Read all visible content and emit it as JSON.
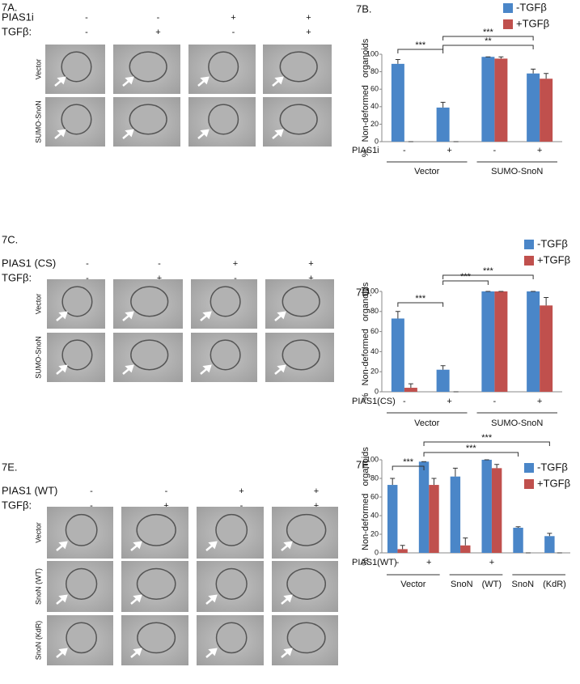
{
  "panels": [
    {
      "label": "7A.",
      "conditions": [
        {
          "name": "PIAS1i",
          "signs": [
            "-",
            "-",
            "+",
            "+"
          ]
        },
        {
          "name": "TGFβ:",
          "signs": [
            "-",
            "+",
            "-",
            "+"
          ]
        }
      ],
      "rows": [
        "Vector",
        "SUMO-SnoN"
      ]
    },
    {
      "label": "7C.",
      "conditions": [
        {
          "name": "PIAS1 (CS)",
          "signs": [
            "-",
            "-",
            "+",
            "+"
          ]
        },
        {
          "name": "TGFβ:",
          "signs": [
            "-",
            "+",
            "-",
            "+"
          ]
        }
      ],
      "rows": [
        "Vector",
        "SUMO-SnoN"
      ]
    },
    {
      "label": "7E.",
      "conditions": [
        {
          "name": "PIAS1 (WT)",
          "signs": [
            "-",
            "-",
            "+",
            "+"
          ]
        },
        {
          "name": "TGFβ:",
          "signs": [
            "-",
            "+",
            "-",
            "+"
          ]
        }
      ],
      "rows": [
        "Vector",
        "SnoN (WT)",
        "SnoN (KdR)"
      ]
    }
  ],
  "chart_data": [
    {
      "type": "bar",
      "title": "7B.",
      "ylabel": "% Non-deformed organoids",
      "x_row_label": "PIAS1i",
      "categories": [
        "-",
        "+",
        "-",
        "+"
      ],
      "groups": [
        "Vector",
        "SUMO-SnoN"
      ],
      "series": [
        {
          "name": "-TGFβ",
          "color": "#4a86c8",
          "values": [
            89,
            39,
            97,
            78
          ],
          "errors": [
            5,
            6,
            0,
            5
          ]
        },
        {
          "name": "+TGFβ",
          "color": "#c0504d",
          "values": [
            0,
            0,
            95,
            72
          ],
          "errors": [
            0,
            0,
            2,
            6
          ]
        }
      ],
      "ylim": [
        0,
        100
      ],
      "yticks": [
        0,
        20,
        40,
        60,
        80,
        100
      ],
      "annotations": [
        {
          "text": "***",
          "between": [
            0,
            1
          ]
        },
        {
          "text": "***",
          "between": [
            1,
            3
          ]
        },
        {
          "text": "**",
          "between": [
            1,
            3
          ]
        }
      ]
    },
    {
      "type": "bar",
      "title": "7D.",
      "ylabel": "% Non-deformed organoids",
      "x_row_label": "PIAS1(CS)",
      "categories": [
        "-",
        "+",
        "-",
        "+"
      ],
      "groups": [
        "Vector",
        "SUMO-SnoN"
      ],
      "series": [
        {
          "name": "-TGFβ",
          "color": "#4a86c8",
          "values": [
            73,
            22,
            100,
            100
          ],
          "errors": [
            7,
            4,
            0,
            0
          ]
        },
        {
          "name": "+TGFβ",
          "color": "#c0504d",
          "values": [
            4,
            0,
            100,
            86
          ],
          "errors": [
            4,
            0,
            0,
            8
          ]
        }
      ],
      "ylim": [
        0,
        100
      ],
      "yticks": [
        0,
        20,
        40,
        60,
        80,
        100
      ],
      "annotations": [
        {
          "text": "***",
          "between": [
            0,
            1
          ]
        },
        {
          "text": "***",
          "between": [
            1,
            2
          ]
        },
        {
          "text": "***",
          "between": [
            1,
            3
          ]
        }
      ]
    },
    {
      "type": "bar",
      "title": "7F.",
      "ylabel": "% Non-deformed organoids",
      "x_row_label": "PIAS1(WT)",
      "categories": [
        "-",
        "+",
        null,
        "+",
        null,
        null
      ],
      "groups": [
        "Vector",
        "SnoN (WT)",
        "SnoN (KdR)"
      ],
      "series": [
        {
          "name": "-TGFβ",
          "color": "#4a86c8",
          "values": [
            73,
            98,
            82,
            100,
            27,
            18
          ],
          "errors": [
            7,
            0,
            9,
            0,
            1,
            3
          ]
        },
        {
          "name": "+TGFβ",
          "color": "#c0504d",
          "values": [
            4,
            73,
            8,
            91,
            0,
            0
          ],
          "errors": [
            4,
            7,
            8,
            4,
            0,
            0
          ]
        }
      ],
      "ylim": [
        0,
        100
      ],
      "yticks": [
        0,
        20,
        40,
        60,
        80,
        100
      ],
      "annotations": [
        {
          "text": "***",
          "between": [
            0,
            1
          ]
        },
        {
          "text": "***",
          "between": [
            1,
            4
          ]
        },
        {
          "text": "***",
          "between": [
            1,
            5
          ]
        }
      ]
    }
  ]
}
